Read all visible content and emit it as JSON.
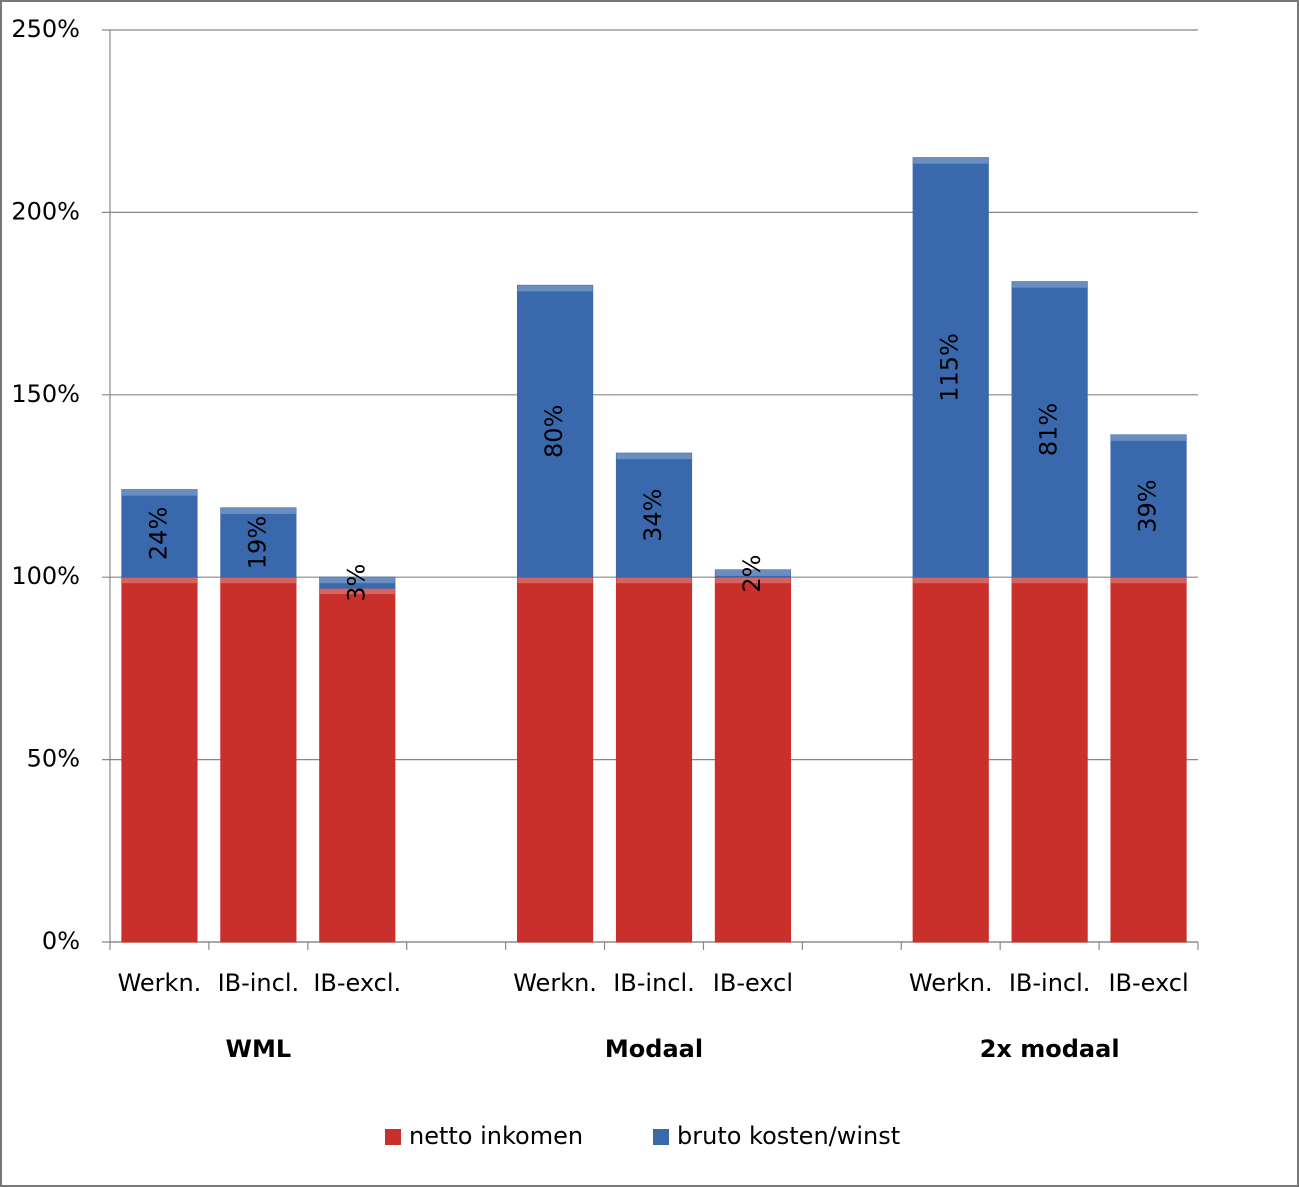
{
  "chart_data": {
    "type": "stacked_bar",
    "categories": [
      "Werkn.",
      "IB-incl.",
      "IB-excl.",
      null,
      "Werkn.",
      "IB-incl.",
      "IB-excl",
      null,
      "Werkn.",
      "IB-incl.",
      "IB-excl"
    ],
    "groups": [
      "WML",
      "Modaal",
      "2x modaal"
    ],
    "series": [
      {
        "name": "netto inkomen",
        "color": "#c9302c",
        "values": [
          100,
          100,
          97,
          null,
          100,
          100,
          100,
          null,
          100,
          100,
          100
        ]
      },
      {
        "name": "bruto kosten/winst",
        "color": "#3a68ad",
        "values": [
          24,
          19,
          3,
          null,
          80,
          34,
          2,
          null,
          115,
          81,
          39
        ],
        "value_labels": [
          "24%",
          "19%",
          "3%",
          null,
          "80%",
          "34%",
          "2%",
          null,
          "115%",
          "81%",
          "39%"
        ]
      }
    ],
    "ylim": [
      0,
      250
    ],
    "yticks": [
      {
        "value": 0,
        "label": "0%"
      },
      {
        "value": 50,
        "label": "50%"
      },
      {
        "value": 100,
        "label": "100%"
      },
      {
        "value": 150,
        "label": "150%"
      },
      {
        "value": 200,
        "label": "200%"
      },
      {
        "value": 250,
        "label": "250%"
      }
    ],
    "grid": true,
    "legend": "bottom"
  }
}
